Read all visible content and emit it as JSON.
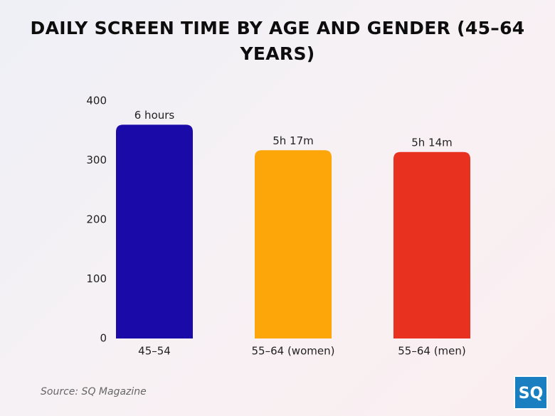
{
  "chart_data": {
    "type": "bar",
    "title": "DAILY SCREEN TIME BY AGE AND GENDER (45–64 YEARS)",
    "categories": [
      "45–54",
      "55–64 (women)",
      "55–64 (men)"
    ],
    "values": [
      360,
      317,
      314
    ],
    "value_labels": [
      "6 hours",
      "5h 17m",
      "5h 14m"
    ],
    "colors": [
      "#1a0aa8",
      "#fca60a",
      "#e8321f"
    ],
    "ylim": [
      0,
      400
    ],
    "yticks": [
      0,
      100,
      200,
      300,
      400
    ],
    "grid": false,
    "source": "Source: SQ Magazine"
  },
  "logo": "SQ"
}
